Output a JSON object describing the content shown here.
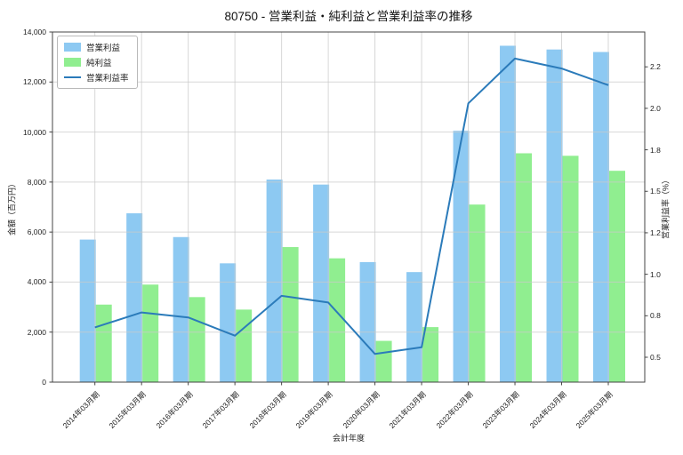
{
  "chart_data": {
    "type": "bar+line",
    "title": "80750 - 営業利益・純利益と営業利益率の推移",
    "xlabel": "会計年度",
    "ylabel_left": "金額（百万円）",
    "ylabel_right": "営業利益率（%）",
    "categories": [
      "2014年03月期",
      "2015年03月期",
      "2016年03月期",
      "2017年03月期",
      "2018年03月期",
      "2019年03月期",
      "2020年03月期",
      "2021年03月期",
      "2022年03月期",
      "2023年03月期",
      "2024年03月期",
      "2025年03月期"
    ],
    "series": [
      {
        "name": "営業利益",
        "type": "bar",
        "axis": "left",
        "color": "#8dc9f2",
        "values": [
          5700,
          6750,
          5800,
          4750,
          8100,
          7900,
          4800,
          4400,
          10050,
          13450,
          13300,
          13200
        ]
      },
      {
        "name": "純利益",
        "type": "bar",
        "axis": "left",
        "color": "#90ee90",
        "values": [
          3100,
          3900,
          3400,
          2900,
          5400,
          4950,
          1650,
          2200,
          7100,
          9150,
          9050,
          8450
        ]
      },
      {
        "name": "営業利益率",
        "type": "line",
        "axis": "right",
        "color": "#2b7bba",
        "values": [
          0.68,
          0.77,
          0.74,
          0.63,
          0.87,
          0.83,
          0.52,
          0.56,
          2.03,
          2.3,
          2.24,
          2.14
        ]
      }
    ],
    "y_left": {
      "min": 0,
      "max": 14000,
      "tick_values": [
        0,
        2000,
        4000,
        6000,
        8000,
        10000,
        12000,
        14000
      ],
      "tick_labels": [
        "0",
        "2,000",
        "4,000",
        "6,000",
        "8,000",
        "10,000",
        "12,000",
        "14,000"
      ]
    },
    "y_right": {
      "min": 0.35,
      "max": 2.46,
      "tick_values": [
        0.5,
        0.75,
        1.0,
        1.25,
        1.5,
        1.75,
        2.0,
        2.25
      ],
      "tick_labels": [
        "0.5",
        "0.8",
        "1.0",
        "1.2",
        "1.5",
        "1.8",
        "2.0",
        "2.2"
      ]
    },
    "grid": "on",
    "legend_position": "upper-left"
  }
}
